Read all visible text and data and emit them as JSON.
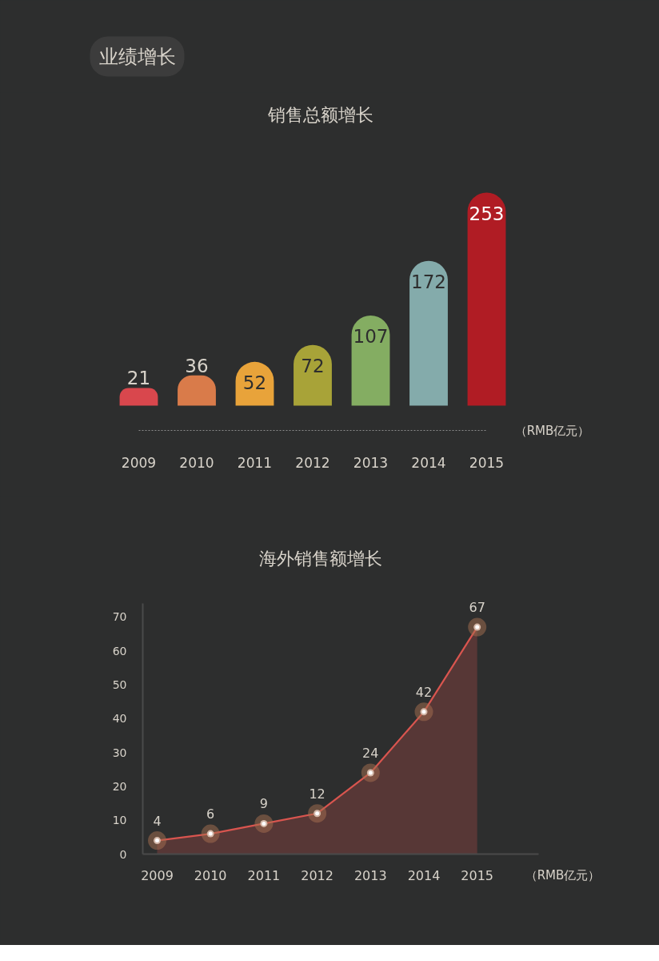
{
  "chart_data": [
    {
      "type": "other",
      "title": "业绩增长"
    },
    {
      "type": "bar",
      "title": "销售总额增长",
      "categories": [
        "2009",
        "2010",
        "2011",
        "2012",
        "2013",
        "2014",
        "2015"
      ],
      "values": [
        21,
        36,
        52,
        72,
        107,
        172,
        253
      ],
      "colors": [
        "#d9474d",
        "#d97b4a",
        "#e8a33a",
        "#a8a338",
        "#84ad62",
        "#84abab",
        "#b01c24"
      ],
      "data_labels": true,
      "tick_labels": "x",
      "annotations": [
        "（RMB亿元）"
      ]
    },
    {
      "type": "area",
      "title": "海外销售额增长",
      "categories": [
        "2009",
        "2010",
        "2011",
        "2012",
        "2013",
        "2014",
        "2015"
      ],
      "series": [
        {
          "color": "#d9554f",
          "values": [
            4,
            6,
            9,
            12,
            24,
            42,
            67
          ]
        }
      ],
      "ylim": [
        0,
        74
      ],
      "yticks": [
        0,
        10,
        20,
        30,
        40,
        50,
        60,
        70
      ],
      "marker": "circle",
      "data_labels": true,
      "annotations": [
        "（RMB亿元）"
      ]
    }
  ]
}
